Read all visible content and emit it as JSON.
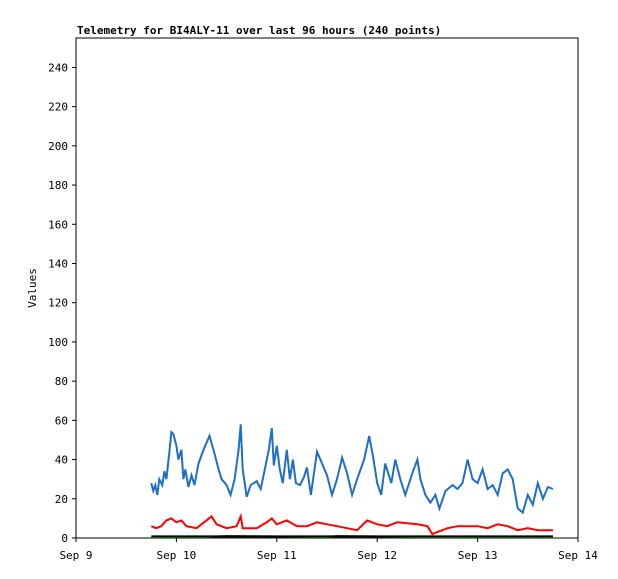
{
  "chart_data": {
    "type": "line",
    "title": "Telemetry for BI4ALY-11 over last 96 hours (240 points)",
    "ylabel": "Values",
    "xlim": [
      9,
      14
    ],
    "xticks": [
      {
        "value": 9,
        "label": "Sep 9"
      },
      {
        "value": 10,
        "label": "Sep 10"
      },
      {
        "value": 11,
        "label": "Sep 11"
      },
      {
        "value": 12,
        "label": "Sep 12"
      },
      {
        "value": 13,
        "label": "Sep 13"
      },
      {
        "value": 14,
        "label": "Sep 14"
      }
    ],
    "ylim": [
      0,
      255
    ],
    "yticks": [
      0,
      20,
      40,
      60,
      80,
      100,
      120,
      140,
      160,
      180,
      200,
      220,
      240
    ],
    "series": [
      {
        "color": "#1f6fc8",
        "x": [
          9.75,
          9.77,
          9.79,
          9.81,
          9.83,
          9.86,
          9.88,
          9.9,
          9.93,
          9.95,
          9.97,
          10.0,
          10.02,
          10.05,
          10.07,
          10.09,
          10.12,
          10.15,
          10.18,
          10.22,
          10.27,
          10.33,
          10.37,
          10.42,
          10.45,
          10.5,
          10.54,
          10.58,
          10.62,
          10.64,
          10.66,
          10.7,
          10.74,
          10.8,
          10.84,
          10.88,
          10.92,
          10.95,
          10.97,
          11.0,
          11.03,
          11.06,
          11.1,
          11.13,
          11.16,
          11.19,
          11.23,
          11.27,
          11.3,
          11.34,
          11.4,
          11.45,
          11.5,
          11.55,
          11.6,
          11.65,
          11.7,
          11.75,
          11.8,
          11.87,
          11.92,
          11.96,
          12.0,
          12.04,
          12.08,
          12.14,
          12.18,
          12.23,
          12.28,
          12.35,
          12.4,
          12.43,
          12.48,
          12.53,
          12.58,
          12.62,
          12.68,
          12.75,
          12.8,
          12.85,
          12.9,
          12.95,
          13.0,
          13.05,
          13.1,
          13.15,
          13.2,
          13.25,
          13.3,
          13.35,
          13.4,
          13.45,
          13.5,
          13.55,
          13.6,
          13.65,
          13.7,
          13.75
        ],
        "values": [
          28,
          24,
          27,
          22,
          30,
          27,
          34,
          30,
          44,
          54,
          53,
          47,
          40,
          45,
          30,
          35,
          26,
          32,
          27,
          38,
          45,
          52,
          45,
          35,
          30,
          27,
          22,
          30,
          45,
          58,
          35,
          21,
          27,
          29,
          25,
          35,
          45,
          56,
          37,
          47,
          35,
          28,
          45,
          30,
          40,
          28,
          27,
          31,
          36,
          22,
          44,
          38,
          32,
          22,
          30,
          41,
          33,
          22,
          30,
          40,
          52,
          41,
          28,
          22,
          38,
          28,
          40,
          30,
          22,
          33,
          40,
          30,
          22,
          18,
          22,
          15,
          24,
          27,
          25,
          28,
          40,
          30,
          28,
          35,
          25,
          27,
          22,
          33,
          35,
          30,
          15,
          13,
          22,
          17,
          28,
          20,
          26,
          25
        ]
      },
      {
        "color": "#ff0000",
        "x": [
          9.75,
          9.8,
          9.85,
          9.9,
          9.95,
          10.0,
          10.05,
          10.1,
          10.2,
          10.3,
          10.35,
          10.4,
          10.5,
          10.6,
          10.64,
          10.66,
          10.8,
          10.9,
          10.95,
          11.0,
          11.1,
          11.2,
          11.3,
          11.4,
          11.5,
          11.6,
          11.7,
          11.8,
          11.9,
          12.0,
          12.1,
          12.2,
          12.4,
          12.5,
          12.55,
          12.6,
          12.7,
          12.8,
          12.9,
          13.0,
          13.1,
          13.2,
          13.3,
          13.4,
          13.5,
          13.6,
          13.75
        ],
        "values": [
          6,
          5,
          6,
          9,
          10,
          8,
          9,
          6,
          5,
          9,
          11,
          7,
          5,
          6,
          11,
          5,
          5,
          8,
          10,
          7,
          9,
          6,
          6,
          8,
          7,
          6,
          5,
          4,
          9,
          7,
          6,
          8,
          7,
          6,
          2,
          3,
          5,
          6,
          6,
          6,
          5,
          7,
          6,
          4,
          5,
          4,
          4
        ]
      },
      {
        "color": "#00a000",
        "x": [
          9.75,
          10.3,
          10.5,
          11.5,
          11.6,
          12.4,
          13.75
        ],
        "values": [
          0.5,
          0.5,
          1,
          0.5,
          1,
          0.5,
          0.5
        ]
      },
      {
        "color": "#000000",
        "x": [
          9.75,
          10.5,
          11.0,
          11.5,
          12.0,
          12.5,
          13.0,
          13.5,
          13.75
        ],
        "values": [
          0.8,
          0.8,
          0.8,
          0.8,
          0.8,
          0.8,
          0.8,
          0.8,
          0.8
        ]
      }
    ]
  }
}
